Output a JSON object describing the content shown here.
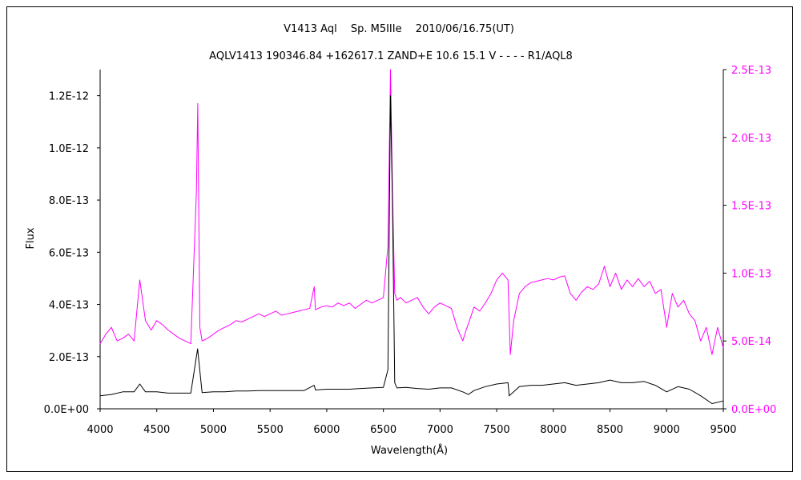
{
  "colors": {
    "black_series": "#000000",
    "magenta_series": "#ff00ff",
    "frame": "#000000"
  },
  "chart_data": {
    "type": "line",
    "title": "V1413 Aql　 Sp. M5IIIe　 2010/06/16.75(UT)",
    "subtitle": "AQLV1413 190346.84 +162617.1 ZAND+E 10.6 15.1 V - - - - R1/AQL8",
    "xlabel": "Wavelength(Å)",
    "ylabel": "Flux",
    "xlim": [
      4000,
      9500
    ],
    "ylim_left": [
      0,
      1.3e-12
    ],
    "ylim_right": [
      0,
      2.5e-13
    ],
    "x_ticks": [
      "4000",
      "4500",
      "5000",
      "5500",
      "6000",
      "6500",
      "7000",
      "7500",
      "8000",
      "8500",
      "9000",
      "9500"
    ],
    "y_left_ticks": [
      "0.0E+00",
      "2.0E-13",
      "4.0E-13",
      "6.0E-13",
      "8.0E-13",
      "1.0E-12",
      "1.2E-12"
    ],
    "y_right_ticks": [
      "0.0E+00",
      "5.0E-14",
      "1.0E-13",
      "1.5E-13",
      "2.0E-13",
      "2.5E-13"
    ],
    "grid": false,
    "series": [
      {
        "axis": "left",
        "color": "#000000",
        "x": [
          4000,
          4100,
          4200,
          4300,
          4350,
          4400,
          4500,
          4600,
          4700,
          4800,
          4860,
          4900,
          5000,
          5100,
          5200,
          5300,
          5400,
          5500,
          5600,
          5700,
          5800,
          5890,
          5900,
          6000,
          6100,
          6200,
          6300,
          6400,
          6500,
          6540,
          6563,
          6580,
          6600,
          6620,
          6700,
          6800,
          6900,
          7000,
          7100,
          7200,
          7250,
          7300,
          7400,
          7500,
          7600,
          7610,
          7650,
          7700,
          7800,
          7900,
          8000,
          8100,
          8200,
          8300,
          8400,
          8500,
          8600,
          8700,
          8800,
          8900,
          9000,
          9100,
          9200,
          9300,
          9400,
          9500
        ],
        "y": [
          5e-14,
          5.5e-14,
          6.5e-14,
          6.5e-14,
          9.5e-14,
          6.5e-14,
          6.5e-14,
          6e-14,
          6e-14,
          6e-14,
          2.3e-13,
          6.2e-14,
          6.5e-14,
          6.5e-14,
          6.8e-14,
          6.8e-14,
          7e-14,
          7e-14,
          7e-14,
          7e-14,
          7e-14,
          9e-14,
          7.2e-14,
          7.5e-14,
          7.5e-14,
          7.5e-14,
          7.8e-14,
          8e-14,
          8.2e-14,
          1.5e-13,
          1.2e-12,
          7.8e-13,
          1e-13,
          8e-14,
          8.2e-14,
          7.8e-14,
          7.5e-14,
          8e-14,
          8e-14,
          6.5e-14,
          5.5e-14,
          7e-14,
          8.5e-14,
          9.5e-14,
          1e-13,
          5e-14,
          6.5e-14,
          8.5e-14,
          9e-14,
          9e-14,
          9.5e-14,
          1e-13,
          9e-14,
          9.5e-14,
          1e-13,
          1.1e-13,
          1e-13,
          1e-13,
          1.05e-13,
          9e-14,
          6.5e-14,
          8.5e-14,
          7.5e-14,
          5e-14,
          2e-14,
          3e-14
        ]
      },
      {
        "axis": "right",
        "color": "#ff00ff",
        "x": [
          4000,
          4050,
          4100,
          4150,
          4200,
          4250,
          4300,
          4350,
          4400,
          4450,
          4500,
          4550,
          4600,
          4650,
          4700,
          4750,
          4800,
          4850,
          4862,
          4880,
          4900,
          4950,
          5000,
          5050,
          5100,
          5150,
          5200,
          5250,
          5300,
          5350,
          5400,
          5450,
          5500,
          5550,
          5600,
          5650,
          5700,
          5750,
          5800,
          5850,
          5890,
          5900,
          5950,
          6000,
          6050,
          6100,
          6150,
          6200,
          6250,
          6300,
          6350,
          6400,
          6450,
          6500,
          6540,
          6563,
          6580,
          6600,
          6620,
          6650,
          6700,
          6750,
          6800,
          6850,
          6900,
          6950,
          7000,
          7050,
          7100,
          7150,
          7200,
          7230,
          7260,
          7300,
          7350,
          7400,
          7450,
          7500,
          7550,
          7600,
          7620,
          7650,
          7700,
          7750,
          7800,
          7850,
          7900,
          7950,
          8000,
          8050,
          8100,
          8150,
          8200,
          8250,
          8300,
          8350,
          8400,
          8450,
          8500,
          8550,
          8600,
          8650,
          8700,
          8750,
          8800,
          8850,
          8900,
          8950,
          9000,
          9050,
          9100,
          9150,
          9200,
          9250,
          9300,
          9350,
          9400,
          9450,
          9500
        ],
        "y": [
          4.8e-14,
          5.5e-14,
          6e-14,
          5e-14,
          5.2e-14,
          5.5e-14,
          5e-14,
          9.5e-14,
          6.5e-14,
          5.8e-14,
          6.5e-14,
          6.2e-14,
          5.8e-14,
          5.5e-14,
          5.2e-14,
          5e-14,
          4.8e-14,
          1.6e-13,
          2.25e-13,
          6e-14,
          5e-14,
          5.2e-14,
          5.5e-14,
          5.8e-14,
          6e-14,
          6.2e-14,
          6.5e-14,
          6.4e-14,
          6.6e-14,
          6.8e-14,
          7e-14,
          6.8e-14,
          7e-14,
          7.2e-14,
          6.9e-14,
          7e-14,
          7.1e-14,
          7.2e-14,
          7.3e-14,
          7.4e-14,
          9e-14,
          7.3e-14,
          7.5e-14,
          7.6e-14,
          7.5e-14,
          7.8e-14,
          7.6e-14,
          7.8e-14,
          7.4e-14,
          7.7e-14,
          8e-14,
          7.8e-14,
          8e-14,
          8.2e-14,
          1.2e-13,
          2.5e-13,
          1.6e-13,
          8.5e-14,
          8e-14,
          8.2e-14,
          7.8e-14,
          8e-14,
          8.2e-14,
          7.5e-14,
          7e-14,
          7.5e-14,
          7.8e-14,
          7.6e-14,
          7.4e-14,
          6e-14,
          5e-14,
          5.8e-14,
          6.5e-14,
          7.5e-14,
          7.2e-14,
          7.8e-14,
          8.5e-14,
          9.5e-14,
          1e-13,
          9.5e-14,
          4e-14,
          6.5e-14,
          8.5e-14,
          9e-14,
          9.3e-14,
          9.4e-14,
          9.5e-14,
          9.6e-14,
          9.5e-14,
          9.7e-14,
          9.8e-14,
          8.5e-14,
          8e-14,
          8.6e-14,
          9e-14,
          8.8e-14,
          9.2e-14,
          1.05e-13,
          9e-14,
          1e-13,
          8.8e-14,
          9.5e-14,
          9e-14,
          9.6e-14,
          9e-14,
          9.4e-14,
          8.5e-14,
          8.8e-14,
          6e-14,
          8.5e-14,
          7.5e-14,
          8e-14,
          7e-14,
          6.5e-14,
          5e-14,
          6e-14,
          4e-14,
          6e-14,
          4.5e-14
        ]
      }
    ]
  }
}
